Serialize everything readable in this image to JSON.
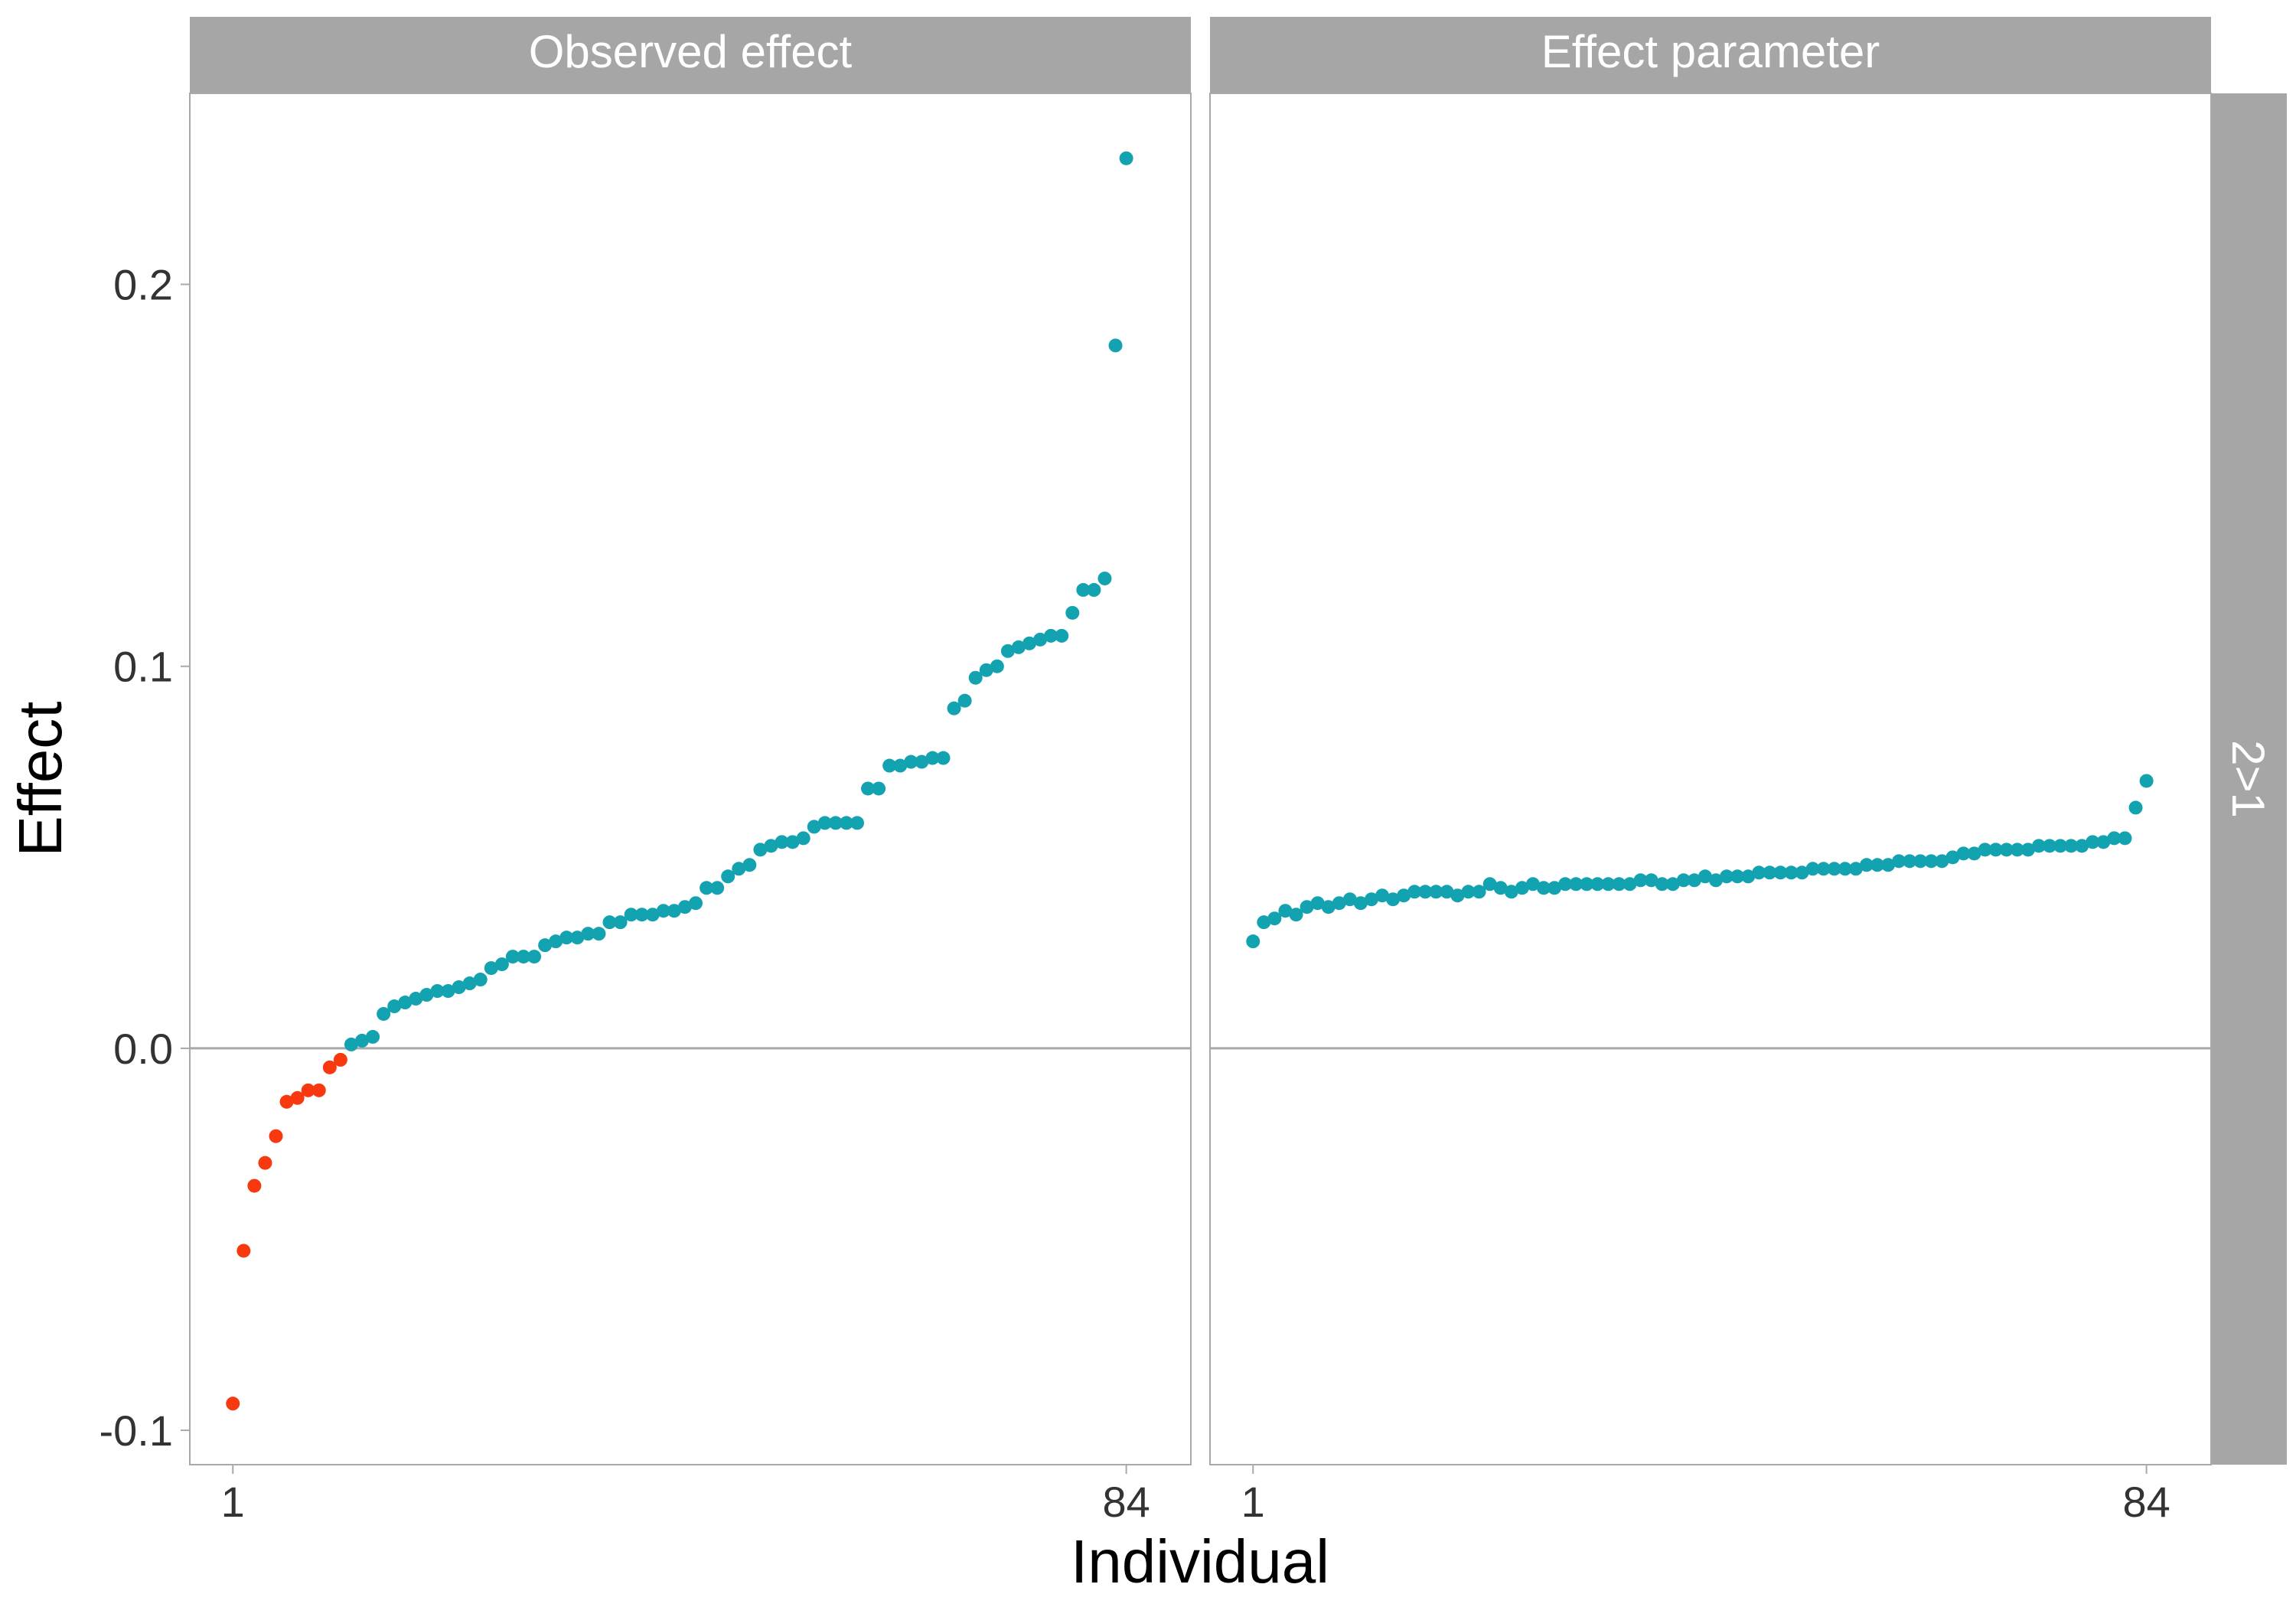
{
  "chart_data": {
    "type": "scatter",
    "xlabel": "Individual",
    "ylabel": "Effect",
    "x_ticks": [
      1,
      84
    ],
    "y_ticks": [
      -0.1,
      0.0,
      0.1,
      0.2
    ],
    "y_tick_labels": [
      "-0.1",
      "0.0",
      "0.1",
      "0.2"
    ],
    "x_tick_labels": [
      "1",
      "84"
    ],
    "xlim": [
      -3,
      90
    ],
    "ylim": [
      -0.109,
      0.25
    ],
    "reference_line_y": 0,
    "row_strip": "2>1",
    "colors": {
      "negative": "#F8390F",
      "positive": "#13A2B0",
      "strip": "#A6A6A6",
      "strip_text": "#FFFFFF",
      "zero_line": "#A9A9A9",
      "panel_border": "#A9A9A9",
      "tick_text": "#333333"
    },
    "panels": [
      {
        "title": "Observed effect",
        "values": [
          -0.093,
          -0.053,
          -0.036,
          -0.03,
          -0.023,
          -0.014,
          -0.013,
          -0.011,
          -0.011,
          -0.005,
          -0.003,
          0.001,
          0.002,
          0.003,
          0.009,
          0.011,
          0.012,
          0.013,
          0.014,
          0.015,
          0.015,
          0.016,
          0.017,
          0.018,
          0.021,
          0.022,
          0.024,
          0.024,
          0.024,
          0.027,
          0.028,
          0.029,
          0.029,
          0.03,
          0.03,
          0.033,
          0.033,
          0.035,
          0.035,
          0.035,
          0.036,
          0.036,
          0.037,
          0.038,
          0.042,
          0.042,
          0.045,
          0.047,
          0.048,
          0.052,
          0.053,
          0.054,
          0.054,
          0.055,
          0.058,
          0.059,
          0.059,
          0.059,
          0.059,
          0.068,
          0.068,
          0.074,
          0.074,
          0.075,
          0.075,
          0.076,
          0.076,
          0.089,
          0.091,
          0.097,
          0.099,
          0.1,
          0.104,
          0.105,
          0.106,
          0.107,
          0.108,
          0.108,
          0.114,
          0.12,
          0.12,
          0.123,
          0.184,
          0.233
        ]
      },
      {
        "title": "Effect parameter",
        "values": [
          0.028,
          0.033,
          0.034,
          0.036,
          0.035,
          0.037,
          0.038,
          0.037,
          0.038,
          0.039,
          0.038,
          0.039,
          0.04,
          0.039,
          0.04,
          0.041,
          0.041,
          0.041,
          0.041,
          0.04,
          0.041,
          0.041,
          0.043,
          0.042,
          0.041,
          0.042,
          0.043,
          0.042,
          0.042,
          0.043,
          0.043,
          0.043,
          0.043,
          0.043,
          0.043,
          0.043,
          0.044,
          0.044,
          0.043,
          0.043,
          0.044,
          0.044,
          0.045,
          0.044,
          0.045,
          0.045,
          0.045,
          0.046,
          0.046,
          0.046,
          0.046,
          0.046,
          0.047,
          0.047,
          0.047,
          0.047,
          0.047,
          0.048,
          0.048,
          0.048,
          0.049,
          0.049,
          0.049,
          0.049,
          0.049,
          0.05,
          0.051,
          0.051,
          0.052,
          0.052,
          0.052,
          0.052,
          0.052,
          0.053,
          0.053,
          0.053,
          0.053,
          0.053,
          0.054,
          0.054,
          0.055,
          0.055,
          0.063,
          0.07
        ]
      }
    ]
  }
}
